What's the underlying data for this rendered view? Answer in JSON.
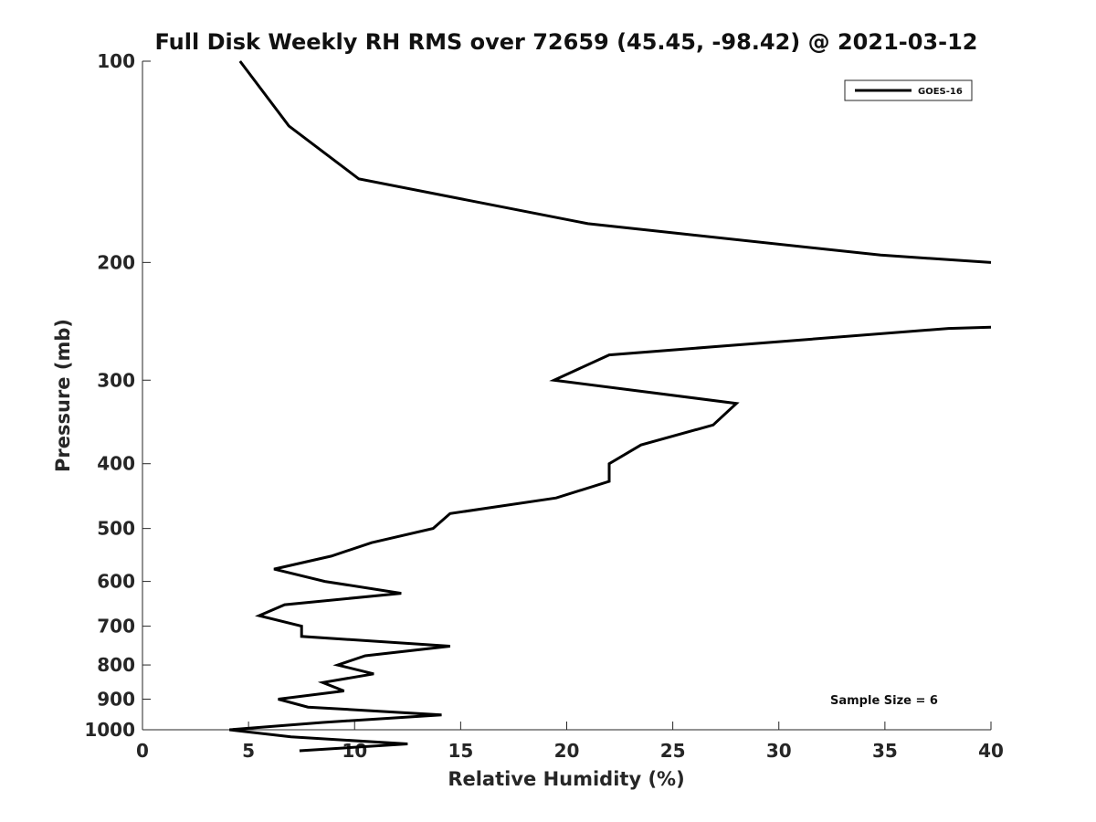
{
  "chart_data": {
    "type": "line",
    "title": "Full Disk Weekly RH RMS over 72659 (45.45, -98.42) @ 2021-03-12",
    "xlabel": "Relative Humidity (%)",
    "ylabel": "Pressure (mb)",
    "xlim": [
      0,
      40
    ],
    "ylim": [
      100,
      1000
    ],
    "y_scale": "log",
    "y_reversed": true,
    "grid": false,
    "legend_placement": "top-right",
    "x_ticks": [
      0,
      5,
      10,
      15,
      20,
      25,
      30,
      35,
      40
    ],
    "y_ticks": [
      100,
      200,
      300,
      400,
      500,
      600,
      700,
      800,
      900,
      1000
    ],
    "series": [
      {
        "name": "GOES-16",
        "color": "#000000",
        "segments": [
          [
            {
              "x": 4.6,
              "p": 100
            },
            {
              "x": 6.9,
              "p": 125
            },
            {
              "x": 10.2,
              "p": 150
            },
            {
              "x": 21.0,
              "p": 175
            },
            {
              "x": 34.8,
              "p": 195
            },
            {
              "x": 40.0,
              "p": 200
            }
          ],
          [
            {
              "x": 40.0,
              "p": 250
            },
            {
              "x": 38.0,
              "p": 251
            },
            {
              "x": 22.0,
              "p": 275
            },
            {
              "x": 19.4,
              "p": 300
            },
            {
              "x": 28.0,
              "p": 325
            },
            {
              "x": 26.9,
              "p": 350
            },
            {
              "x": 23.5,
              "p": 375
            },
            {
              "x": 22.0,
              "p": 400
            },
            {
              "x": 22.0,
              "p": 425
            },
            {
              "x": 19.5,
              "p": 450
            },
            {
              "x": 14.5,
              "p": 475
            },
            {
              "x": 13.7,
              "p": 500
            },
            {
              "x": 10.8,
              "p": 525
            },
            {
              "x": 8.9,
              "p": 550
            },
            {
              "x": 6.2,
              "p": 575
            },
            {
              "x": 8.6,
              "p": 600
            },
            {
              "x": 12.2,
              "p": 625
            },
            {
              "x": 6.7,
              "p": 650
            },
            {
              "x": 5.5,
              "p": 675
            },
            {
              "x": 7.5,
              "p": 700
            },
            {
              "x": 7.5,
              "p": 725
            },
            {
              "x": 14.5,
              "p": 750
            },
            {
              "x": 10.5,
              "p": 775
            },
            {
              "x": 9.2,
              "p": 800
            },
            {
              "x": 10.9,
              "p": 825
            },
            {
              "x": 8.5,
              "p": 850
            },
            {
              "x": 9.5,
              "p": 875
            },
            {
              "x": 6.4,
              "p": 900
            },
            {
              "x": 7.8,
              "p": 925
            },
            {
              "x": 14.1,
              "p": 950
            },
            {
              "x": 8.5,
              "p": 975
            },
            {
              "x": 4.1,
              "p": 1000
            },
            {
              "x": 7.0,
              "p": 1025
            },
            {
              "x": 12.5,
              "p": 1050
            },
            {
              "x": 7.4,
              "p": 1075
            }
          ]
        ]
      }
    ],
    "annotations": [
      {
        "text": "Sample Size = 6"
      }
    ]
  }
}
